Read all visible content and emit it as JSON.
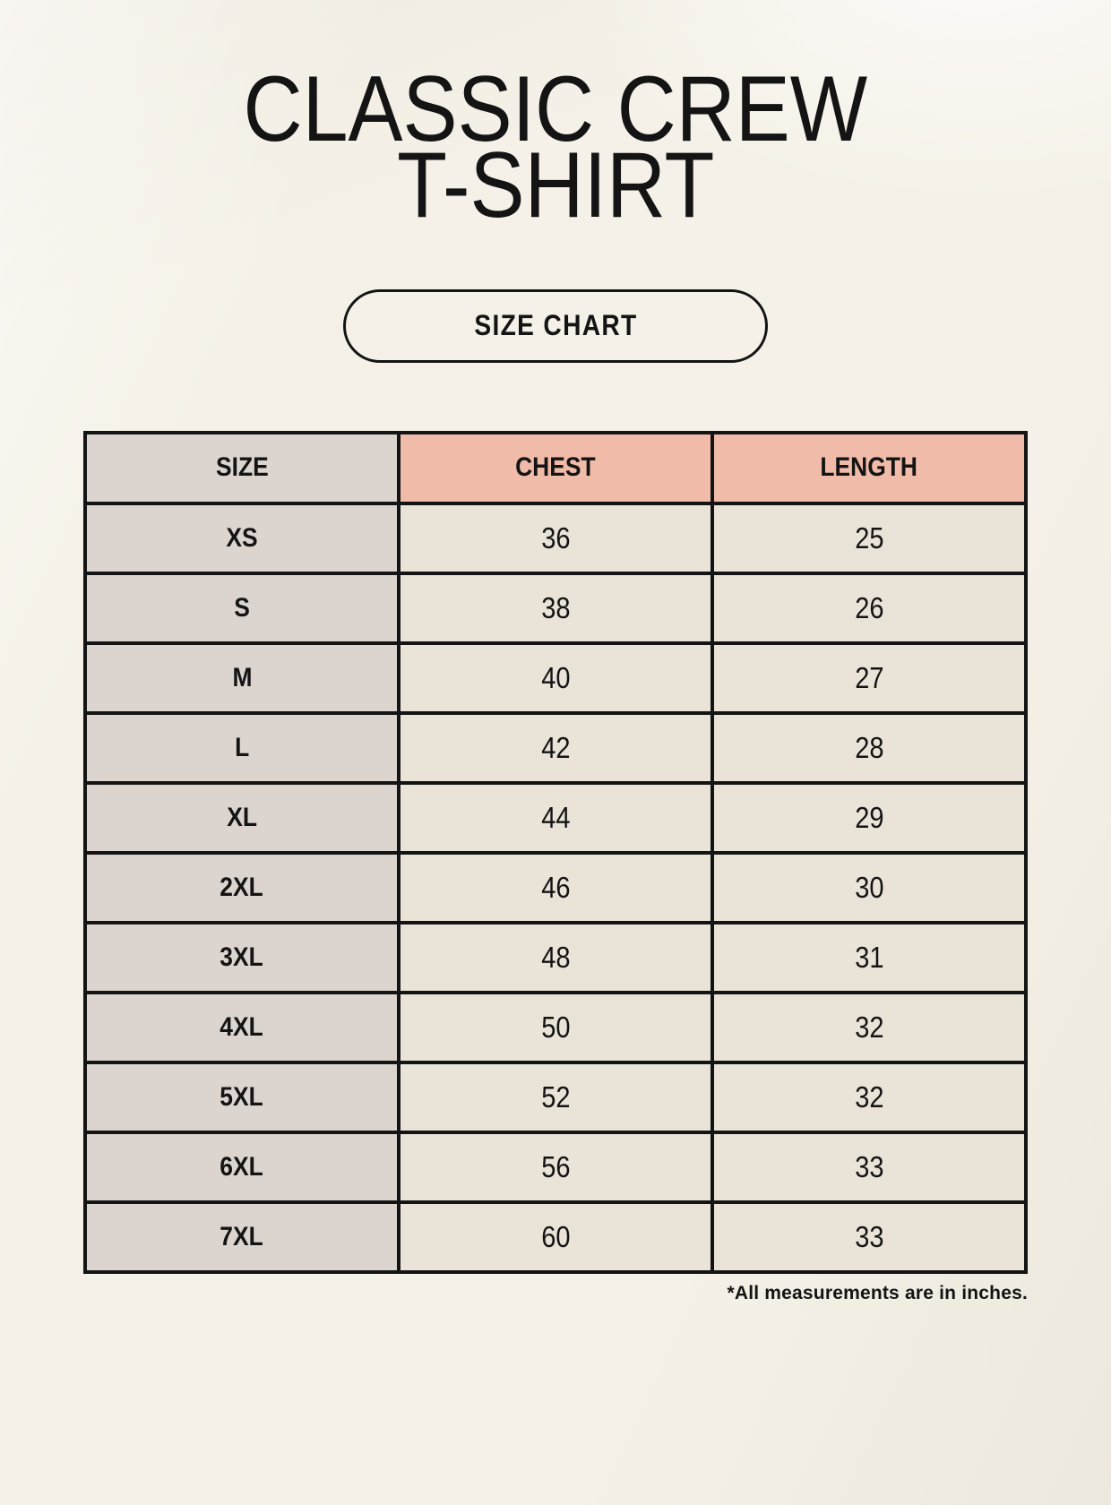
{
  "page": {
    "title_line1": "CLASSIC CREW",
    "title_line2": "T-SHIRT",
    "badge_label": "SIZE CHART",
    "footnote": "*All measurements are in inches."
  },
  "table": {
    "headers": [
      "SIZE",
      "CHEST",
      "LENGTH"
    ],
    "rows": [
      {
        "size": "XS",
        "chest": "36",
        "length": "25"
      },
      {
        "size": "S",
        "chest": "38",
        "length": "26"
      },
      {
        "size": "M",
        "chest": "40",
        "length": "27"
      },
      {
        "size": "L",
        "chest": "42",
        "length": "28"
      },
      {
        "size": "XL",
        "chest": "44",
        "length": "29"
      },
      {
        "size": "2XL",
        "chest": "46",
        "length": "30"
      },
      {
        "size": "3XL",
        "chest": "48",
        "length": "31"
      },
      {
        "size": "4XL",
        "chest": "50",
        "length": "32"
      },
      {
        "size": "5XL",
        "chest": "52",
        "length": "32"
      },
      {
        "size": "6XL",
        "chest": "56",
        "length": "33"
      },
      {
        "size": "7XL",
        "chest": "60",
        "length": "33"
      }
    ]
  },
  "colors": {
    "page_background": "#f5f1e8",
    "header_accent": "#f1bbaa",
    "size_column": "#dcd5cf",
    "cell_background": "#eae3d8",
    "border": "#141414",
    "text": "#141414"
  },
  "chart_data": {
    "type": "table",
    "title": "CLASSIC CREW T-SHIRT",
    "subtitle": "SIZE CHART",
    "columns": [
      "SIZE",
      "CHEST",
      "LENGTH"
    ],
    "categories": [
      "XS",
      "S",
      "M",
      "L",
      "XL",
      "2XL",
      "3XL",
      "4XL",
      "5XL",
      "6XL",
      "7XL"
    ],
    "series": [
      {
        "name": "CHEST",
        "values": [
          36,
          38,
          40,
          42,
          44,
          46,
          48,
          50,
          52,
          56,
          60
        ]
      },
      {
        "name": "LENGTH",
        "values": [
          25,
          26,
          27,
          28,
          29,
          30,
          31,
          32,
          32,
          33,
          33
        ]
      }
    ],
    "units": "inches",
    "note": "*All measurements are in inches."
  }
}
